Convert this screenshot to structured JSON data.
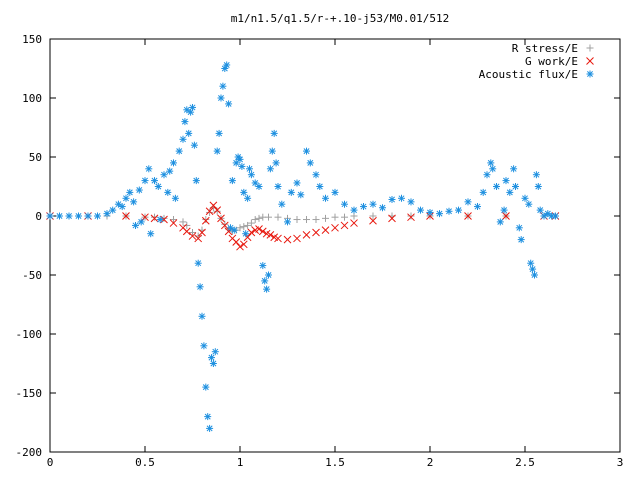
{
  "chart_data": {
    "type": "scatter",
    "title": "m1/n1.5/q1.5/r-+.10-j53/M0.01/512",
    "xlabel": "",
    "ylabel": "",
    "xlim": [
      0,
      3
    ],
    "ylim": [
      -200,
      150
    ],
    "x_ticks": [
      "0",
      "0.5",
      "1",
      "1.5",
      "2",
      "2.5",
      "3"
    ],
    "y_ticks": [
      "150",
      "100",
      "50",
      "0",
      "-50",
      "-100",
      "-150",
      "-200"
    ],
    "grid": false,
    "legend_position": "top-right",
    "series": [
      {
        "name": "R stress/E",
        "marker": "+",
        "color": "#a0a0a0",
        "points": [
          [
            0.0,
            0
          ],
          [
            0.1,
            0
          ],
          [
            0.2,
            0
          ],
          [
            0.3,
            0
          ],
          [
            0.4,
            0
          ],
          [
            0.5,
            -1
          ],
          [
            0.55,
            -1
          ],
          [
            0.6,
            -2
          ],
          [
            0.65,
            -3
          ],
          [
            0.7,
            -5
          ],
          [
            0.72,
            -8
          ],
          [
            0.75,
            -14
          ],
          [
            0.78,
            -17
          ],
          [
            0.8,
            -12
          ],
          [
            0.82,
            -3
          ],
          [
            0.84,
            3
          ],
          [
            0.86,
            7
          ],
          [
            0.88,
            4
          ],
          [
            0.9,
            -2
          ],
          [
            0.92,
            -7
          ],
          [
            0.94,
            -11
          ],
          [
            0.96,
            -13
          ],
          [
            0.98,
            -12
          ],
          [
            1.0,
            -10
          ],
          [
            1.02,
            -9
          ],
          [
            1.04,
            -8
          ],
          [
            1.06,
            -6
          ],
          [
            1.08,
            -3
          ],
          [
            1.1,
            -2
          ],
          [
            1.12,
            -1
          ],
          [
            1.15,
            -1
          ],
          [
            1.2,
            -1
          ],
          [
            1.25,
            -2
          ],
          [
            1.3,
            -3
          ],
          [
            1.35,
            -3
          ],
          [
            1.4,
            -3
          ],
          [
            1.45,
            -2
          ],
          [
            1.5,
            -1
          ],
          [
            1.55,
            -1
          ],
          [
            1.6,
            0
          ],
          [
            1.7,
            0
          ],
          [
            1.8,
            0
          ],
          [
            1.9,
            0
          ],
          [
            2.0,
            0
          ],
          [
            2.2,
            0
          ],
          [
            2.4,
            0
          ],
          [
            2.6,
            0
          ],
          [
            2.66,
            0
          ]
        ]
      },
      {
        "name": "G work/E",
        "marker": "x",
        "color": "#e8160c",
        "points": [
          [
            0.0,
            0
          ],
          [
            0.2,
            0
          ],
          [
            0.4,
            0
          ],
          [
            0.5,
            -1
          ],
          [
            0.55,
            -2
          ],
          [
            0.6,
            -3
          ],
          [
            0.65,
            -6
          ],
          [
            0.7,
            -10
          ],
          [
            0.72,
            -13
          ],
          [
            0.75,
            -17
          ],
          [
            0.78,
            -19
          ],
          [
            0.8,
            -14
          ],
          [
            0.82,
            -4
          ],
          [
            0.84,
            4
          ],
          [
            0.86,
            9
          ],
          [
            0.88,
            5
          ],
          [
            0.9,
            -2
          ],
          [
            0.92,
            -8
          ],
          [
            0.94,
            -13
          ],
          [
            0.96,
            -19
          ],
          [
            0.98,
            -22
          ],
          [
            1.0,
            -26
          ],
          [
            1.02,
            -24
          ],
          [
            1.04,
            -18
          ],
          [
            1.06,
            -14
          ],
          [
            1.08,
            -12
          ],
          [
            1.1,
            -11
          ],
          [
            1.12,
            -13
          ],
          [
            1.14,
            -15
          ],
          [
            1.16,
            -16
          ],
          [
            1.18,
            -18
          ],
          [
            1.2,
            -19
          ],
          [
            1.25,
            -20
          ],
          [
            1.3,
            -19
          ],
          [
            1.35,
            -16
          ],
          [
            1.4,
            -14
          ],
          [
            1.45,
            -12
          ],
          [
            1.5,
            -10
          ],
          [
            1.55,
            -8
          ],
          [
            1.6,
            -6
          ],
          [
            1.7,
            -4
          ],
          [
            1.8,
            -2
          ],
          [
            1.9,
            -1
          ],
          [
            2.0,
            0
          ],
          [
            2.2,
            0
          ],
          [
            2.4,
            0
          ],
          [
            2.6,
            0
          ],
          [
            2.66,
            0
          ]
        ]
      },
      {
        "name": "Acoustic flux/E",
        "marker": "*",
        "color": "#1e90e0",
        "points": [
          [
            0.0,
            0
          ],
          [
            0.05,
            0
          ],
          [
            0.1,
            0
          ],
          [
            0.15,
            0
          ],
          [
            0.2,
            0
          ],
          [
            0.25,
            0
          ],
          [
            0.3,
            2
          ],
          [
            0.33,
            5
          ],
          [
            0.36,
            10
          ],
          [
            0.38,
            8
          ],
          [
            0.4,
            15
          ],
          [
            0.42,
            20
          ],
          [
            0.44,
            12
          ],
          [
            0.45,
            -8
          ],
          [
            0.47,
            22
          ],
          [
            0.48,
            -5
          ],
          [
            0.5,
            30
          ],
          [
            0.52,
            40
          ],
          [
            0.53,
            -15
          ],
          [
            0.55,
            30
          ],
          [
            0.57,
            25
          ],
          [
            0.58,
            -3
          ],
          [
            0.6,
            35
          ],
          [
            0.62,
            20
          ],
          [
            0.63,
            38
          ],
          [
            0.65,
            45
          ],
          [
            0.66,
            15
          ],
          [
            0.68,
            55
          ],
          [
            0.7,
            65
          ],
          [
            0.71,
            80
          ],
          [
            0.72,
            90
          ],
          [
            0.73,
            70
          ],
          [
            0.74,
            88
          ],
          [
            0.75,
            92
          ],
          [
            0.76,
            60
          ],
          [
            0.77,
            30
          ],
          [
            0.78,
            -40
          ],
          [
            0.79,
            -60
          ],
          [
            0.8,
            -85
          ],
          [
            0.81,
            -110
          ],
          [
            0.82,
            -145
          ],
          [
            0.83,
            -170
          ],
          [
            0.84,
            -180
          ],
          [
            0.85,
            -120
          ],
          [
            0.86,
            -125
          ],
          [
            0.87,
            -115
          ],
          [
            0.88,
            55
          ],
          [
            0.89,
            70
          ],
          [
            0.9,
            100
          ],
          [
            0.91,
            110
          ],
          [
            0.92,
            125
          ],
          [
            0.93,
            128
          ],
          [
            0.94,
            95
          ],
          [
            0.95,
            -10
          ],
          [
            0.96,
            30
          ],
          [
            0.97,
            -12
          ],
          [
            0.98,
            45
          ],
          [
            0.99,
            50
          ],
          [
            1.0,
            48
          ],
          [
            1.01,
            42
          ],
          [
            1.02,
            20
          ],
          [
            1.03,
            -15
          ],
          [
            1.04,
            15
          ],
          [
            1.05,
            40
          ],
          [
            1.06,
            35
          ],
          [
            1.08,
            28
          ],
          [
            1.1,
            25
          ],
          [
            1.12,
            -42
          ],
          [
            1.13,
            -55
          ],
          [
            1.14,
            -62
          ],
          [
            1.15,
            -50
          ],
          [
            1.16,
            40
          ],
          [
            1.17,
            55
          ],
          [
            1.18,
            70
          ],
          [
            1.19,
            45
          ],
          [
            1.2,
            25
          ],
          [
            1.22,
            10
          ],
          [
            1.25,
            -5
          ],
          [
            1.27,
            20
          ],
          [
            1.3,
            28
          ],
          [
            1.32,
            18
          ],
          [
            1.35,
            55
          ],
          [
            1.37,
            45
          ],
          [
            1.4,
            35
          ],
          [
            1.42,
            25
          ],
          [
            1.45,
            15
          ],
          [
            1.5,
            20
          ],
          [
            1.55,
            10
          ],
          [
            1.6,
            5
          ],
          [
            1.65,
            8
          ],
          [
            1.7,
            10
          ],
          [
            1.75,
            7
          ],
          [
            1.8,
            14
          ],
          [
            1.85,
            15
          ],
          [
            1.9,
            12
          ],
          [
            1.95,
            5
          ],
          [
            2.0,
            3
          ],
          [
            2.05,
            2
          ],
          [
            2.1,
            4
          ],
          [
            2.15,
            5
          ],
          [
            2.2,
            12
          ],
          [
            2.25,
            8
          ],
          [
            2.28,
            20
          ],
          [
            2.3,
            35
          ],
          [
            2.32,
            45
          ],
          [
            2.33,
            40
          ],
          [
            2.35,
            25
          ],
          [
            2.37,
            -5
          ],
          [
            2.39,
            5
          ],
          [
            2.4,
            30
          ],
          [
            2.42,
            20
          ],
          [
            2.44,
            40
          ],
          [
            2.45,
            25
          ],
          [
            2.47,
            -10
          ],
          [
            2.48,
            -20
          ],
          [
            2.5,
            15
          ],
          [
            2.52,
            10
          ],
          [
            2.53,
            -40
          ],
          [
            2.54,
            -45
          ],
          [
            2.55,
            -50
          ],
          [
            2.56,
            35
          ],
          [
            2.57,
            25
          ],
          [
            2.58,
            5
          ],
          [
            2.6,
            0
          ],
          [
            2.62,
            2
          ],
          [
            2.64,
            0
          ],
          [
            2.66,
            0
          ]
        ]
      }
    ]
  },
  "colors": {
    "axis": "#000000",
    "background": "#ffffff"
  }
}
